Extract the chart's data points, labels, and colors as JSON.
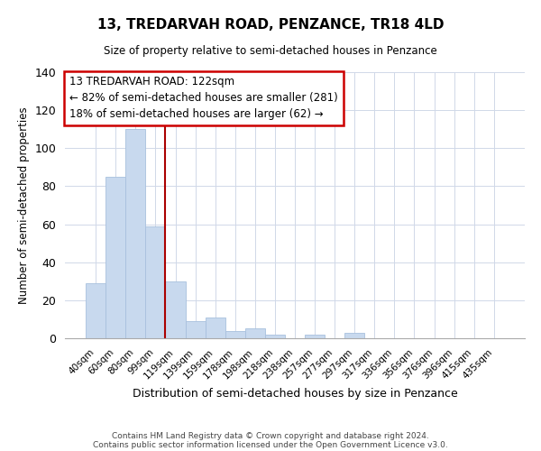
{
  "title": "13, TREDARVAH ROAD, PENZANCE, TR18 4LD",
  "subtitle": "Size of property relative to semi-detached houses in Penzance",
  "xlabel": "Distribution of semi-detached houses by size in Penzance",
  "ylabel": "Number of semi-detached properties",
  "bar_labels": [
    "40sqm",
    "60sqm",
    "80sqm",
    "99sqm",
    "119sqm",
    "139sqm",
    "159sqm",
    "178sqm",
    "198sqm",
    "218sqm",
    "238sqm",
    "257sqm",
    "277sqm",
    "297sqm",
    "317sqm",
    "336sqm",
    "356sqm",
    "376sqm",
    "396sqm",
    "415sqm",
    "435sqm"
  ],
  "bar_heights": [
    29,
    85,
    110,
    59,
    30,
    9,
    11,
    4,
    5,
    2,
    0,
    2,
    0,
    3,
    0,
    0,
    0,
    0,
    0,
    0,
    0
  ],
  "bar_color": "#c8d9ee",
  "bar_edge_color": "#a8c0de",
  "highlight_line_color": "#aa0000",
  "ylim": [
    0,
    140
  ],
  "yticks": [
    0,
    20,
    40,
    60,
    80,
    100,
    120,
    140
  ],
  "annotation_title": "13 TREDARVAH ROAD: 122sqm",
  "annotation_line1": "← 82% of semi-detached houses are smaller (281)",
  "annotation_line2": "18% of semi-detached houses are larger (62) →",
  "annotation_box_color": "#ffffff",
  "annotation_box_edge_color": "#cc0000",
  "footnote1": "Contains HM Land Registry data © Crown copyright and database right 2024.",
  "footnote2": "Contains public sector information licensed under the Open Government Licence v3.0.",
  "grid_color": "#d0d8e8"
}
